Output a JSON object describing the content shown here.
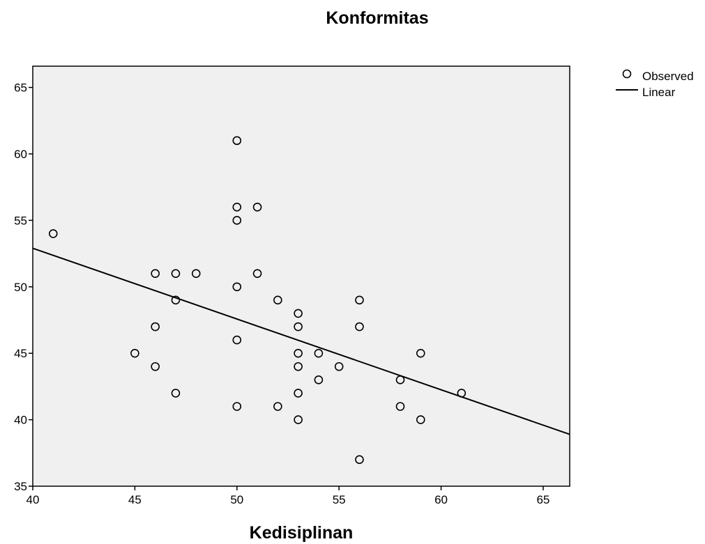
{
  "chart_data": {
    "type": "scatter",
    "title": "Konformitas",
    "xlabel": "Kedisiplinan",
    "ylabel": "",
    "xlim": [
      40,
      66.3
    ],
    "ylim": [
      35,
      66.6
    ],
    "xticks": [
      "40",
      "45",
      "50",
      "55",
      "60",
      "65"
    ],
    "yticks": [
      "35",
      "40",
      "45",
      "50",
      "55",
      "60",
      "65"
    ],
    "grid": false,
    "legend_position": "top-right",
    "legend": [
      "Observed",
      "Linear"
    ],
    "series": [
      {
        "name": "Observed",
        "kind": "points",
        "points": [
          [
            41,
            54
          ],
          [
            45,
            45
          ],
          [
            46,
            51
          ],
          [
            46,
            47
          ],
          [
            46,
            44
          ],
          [
            47,
            51
          ],
          [
            47,
            49
          ],
          [
            47,
            42
          ],
          [
            48,
            51
          ],
          [
            50,
            61
          ],
          [
            50,
            56
          ],
          [
            50,
            55
          ],
          [
            50,
            50
          ],
          [
            50,
            46
          ],
          [
            50,
            41
          ],
          [
            51,
            56
          ],
          [
            51,
            51
          ],
          [
            52,
            49
          ],
          [
            52,
            41
          ],
          [
            53,
            48
          ],
          [
            53,
            47
          ],
          [
            53,
            45
          ],
          [
            53,
            44
          ],
          [
            53,
            42
          ],
          [
            53,
            40
          ],
          [
            54,
            45
          ],
          [
            54,
            43
          ],
          [
            55,
            44
          ],
          [
            56,
            49
          ],
          [
            56,
            47
          ],
          [
            56,
            37
          ],
          [
            58,
            43
          ],
          [
            58,
            41
          ],
          [
            59,
            45
          ],
          [
            59,
            40
          ],
          [
            61,
            42
          ]
        ]
      },
      {
        "name": "Linear",
        "kind": "line",
        "points": [
          [
            40,
            52.9
          ],
          [
            66.3,
            38.9
          ]
        ]
      }
    ]
  }
}
